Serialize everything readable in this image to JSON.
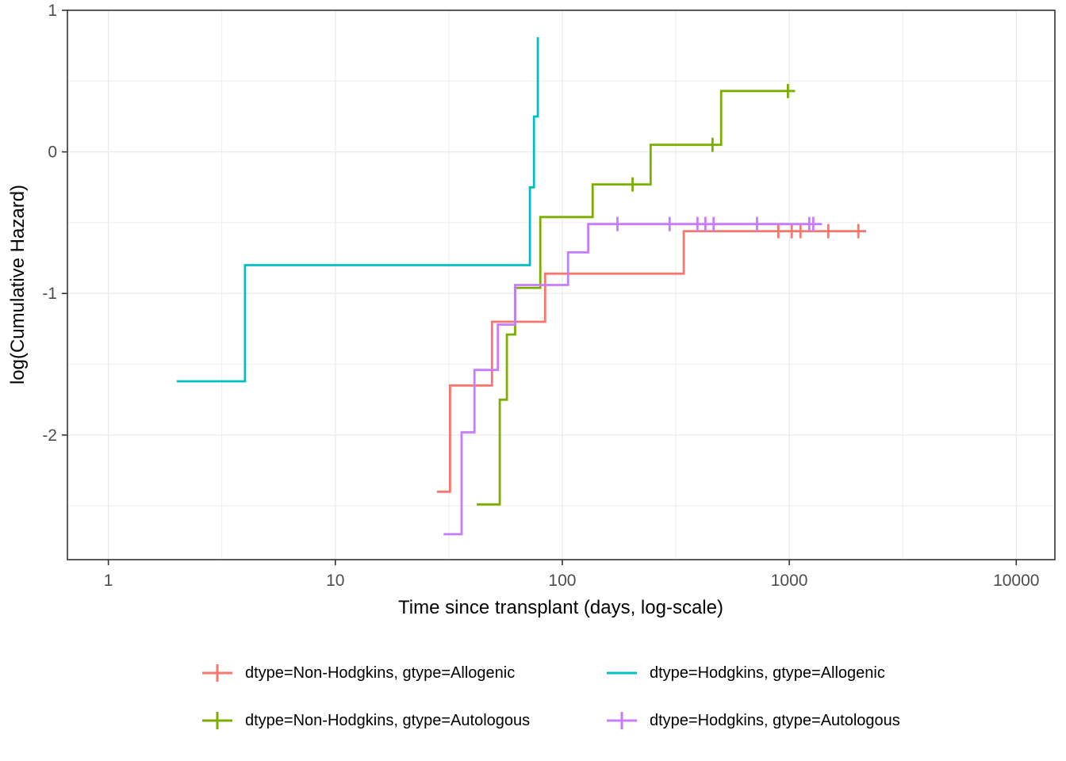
{
  "chart_data": {
    "type": "line",
    "subtype": "step-function (Nelson-Aalen cumulative hazard, events as steps, '+' = censoring marks)",
    "title": "",
    "xlabel": "Time since transplant (days, log-scale)",
    "ylabel": "log(Cumulative Hazard)",
    "x_scale": "log10",
    "xlim": [
      0.66,
      14800
    ],
    "ylim": [
      -2.88,
      1.0
    ],
    "x_ticks": [
      {
        "value": 1,
        "label": "1"
      },
      {
        "value": 10,
        "label": "10"
      },
      {
        "value": 100,
        "label": "100"
      },
      {
        "value": 1000,
        "label": "1000"
      },
      {
        "value": 10000,
        "label": "10000"
      }
    ],
    "x_minor_ticks": [
      3.162,
      31.62,
      316.2,
      3162
    ],
    "y_ticks": [
      {
        "value": 1,
        "label": "1"
      },
      {
        "value": 0,
        "label": "0"
      },
      {
        "value": -1,
        "label": "-1"
      },
      {
        "value": -2,
        "label": "-2"
      }
    ],
    "y_minor_ticks": [
      0.5,
      -0.5,
      -1.5,
      -2.5
    ],
    "grid": true,
    "legend_position": "bottom",
    "panel_border_color": "#333333",
    "grid_color": "#ebebeb",
    "series": [
      {
        "name": "dtype=Non-Hodgkins, gtype=Allogenic",
        "color": "#F8766D",
        "legend_key": "line-cross",
        "steps": [
          [
            28,
            -2.4
          ],
          [
            32,
            -1.65
          ],
          [
            49,
            -1.2
          ],
          [
            84,
            -0.86
          ],
          [
            343,
            -0.56
          ]
        ],
        "end_x": 2180,
        "censors": [
          [
            895,
            -0.56
          ],
          [
            1025,
            -0.56
          ],
          [
            1120,
            -0.56
          ],
          [
            1485,
            -0.56
          ],
          [
            2015,
            -0.56
          ]
        ]
      },
      {
        "name": "dtype=Hodgkins, gtype=Allogenic",
        "color": "#00BFC4",
        "legend_key": "line",
        "steps": [
          [
            2,
            -1.62
          ],
          [
            4,
            -0.8
          ],
          [
            72,
            -0.25
          ],
          [
            75,
            0.25
          ],
          [
            78,
            0.81
          ]
        ],
        "end_x": 78,
        "censors": []
      },
      {
        "name": "dtype=Non-Hodgkins, gtype=Autologous",
        "color": "#7CAE00",
        "legend_key": "line-cross",
        "steps": [
          [
            42,
            -2.49
          ],
          [
            53,
            -1.75
          ],
          [
            57,
            -1.29
          ],
          [
            62,
            -0.96
          ],
          [
            80,
            -0.46
          ],
          [
            136,
            -0.23
          ],
          [
            245,
            0.05
          ],
          [
            501,
            0.43
          ]
        ],
        "end_x": 1060,
        "censors": [
          [
            204,
            -0.23
          ],
          [
            459,
            0.05
          ],
          [
            986,
            0.43
          ]
        ]
      },
      {
        "name": "dtype=Hodgkins, gtype=Autologous",
        "color": "#C77CFF",
        "legend_key": "line-cross",
        "steps": [
          [
            30,
            -2.7
          ],
          [
            36,
            -1.98
          ],
          [
            41,
            -1.54
          ],
          [
            52,
            -1.22
          ],
          [
            62,
            -0.94
          ],
          [
            106,
            -0.71
          ],
          [
            130,
            -0.51
          ]
        ],
        "end_x": 1394,
        "censors": [
          [
            175,
            -0.51
          ],
          [
            297,
            -0.51
          ],
          [
            394,
            -0.51
          ],
          [
            427,
            -0.51
          ],
          [
            464,
            -0.51
          ],
          [
            721,
            -0.51
          ],
          [
            1225,
            -0.51
          ],
          [
            1276,
            -0.51
          ]
        ]
      }
    ]
  }
}
